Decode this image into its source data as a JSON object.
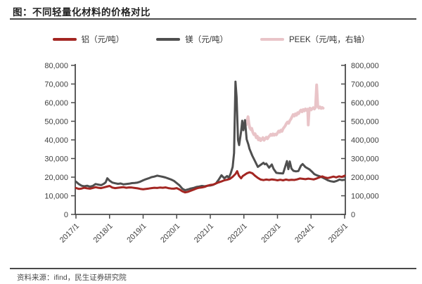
{
  "title": "图：不同轻量化材料的价格对比",
  "source": "资料来源：ifind，民生证券研究院",
  "colors": {
    "aluminum": "#a32622",
    "magnesium": "#4f4f4f",
    "peek": "#e9c4c8",
    "axis": "#4a4a4a",
    "tick_text": "#404040"
  },
  "legend": [
    {
      "label": "铝（元/吨）",
      "color": "#a32622"
    },
    {
      "label": "镁（元/吨）",
      "color": "#4f4f4f"
    },
    {
      "label": "PEEK（元/吨，右轴）",
      "color": "#e9c4c8"
    }
  ],
  "chart_data": {
    "type": "line",
    "title": "不同轻量化材料的价格对比",
    "x_unit": "months since 2017/1",
    "x_range": [
      0,
      96
    ],
    "x_tick_labels": [
      "2017/1",
      "2018/1",
      "2019/1",
      "2020/1",
      "2021/1",
      "2022/1",
      "2023/1",
      "2024/1",
      "2025/1"
    ],
    "left_axis": {
      "min": 0,
      "max": 80000,
      "step": 10000,
      "tick_labels": [
        "0",
        "10,000",
        "20,000",
        "30,000",
        "40,000",
        "50,000",
        "60,000",
        "70,000",
        "80,000"
      ]
    },
    "right_axis": {
      "min": 0,
      "max": 800000,
      "step": 100000,
      "tick_labels": [
        "0",
        "100,000",
        "200,000",
        "300,000",
        "400,000",
        "500,000",
        "600,000",
        "700,000",
        "800,000"
      ]
    },
    "grid": false,
    "legend_position": "top",
    "series": [
      {
        "name": "PEEK（元/吨，右轴）",
        "axis": "right",
        "color": "#e9c4c8",
        "width": 4,
        "points": [
          [
            60.5,
            491000
          ],
          [
            60.8,
            480000
          ],
          [
            61.2,
            508000
          ],
          [
            61.5,
            524000
          ],
          [
            61.8,
            488000
          ],
          [
            62.1,
            466000
          ],
          [
            62.5,
            455000
          ],
          [
            62.8,
            462000
          ],
          [
            63.2,
            440000
          ],
          [
            63.6,
            428000
          ],
          [
            64,
            433000
          ],
          [
            64.4,
            412000
          ],
          [
            64.8,
            420000
          ],
          [
            65.2,
            400000
          ],
          [
            65.6,
            410000
          ],
          [
            66,
            396000
          ],
          [
            66.4,
            404000
          ],
          [
            66.8,
            412000
          ],
          [
            67.2,
            398000
          ],
          [
            67.6,
            406000
          ],
          [
            68,
            414000
          ],
          [
            68.4,
            406000
          ],
          [
            68.8,
            416000
          ],
          [
            69.2,
            422000
          ],
          [
            69.6,
            430000
          ],
          [
            70,
            424000
          ],
          [
            70.4,
            432000
          ],
          [
            70.8,
            425000
          ],
          [
            71.2,
            431000
          ],
          [
            71.6,
            427000
          ],
          [
            72,
            437000
          ],
          [
            72.4,
            447000
          ],
          [
            72.8,
            442000
          ],
          [
            73.2,
            452000
          ],
          [
            73.6,
            446000
          ],
          [
            74,
            460000
          ],
          [
            74.4,
            468000
          ],
          [
            74.8,
            476000
          ],
          [
            75.2,
            488000
          ],
          [
            75.6,
            496000
          ],
          [
            76,
            489000
          ],
          [
            76.4,
            503000
          ],
          [
            76.8,
            512000
          ],
          [
            77.2,
            524000
          ],
          [
            77.6,
            536000
          ],
          [
            78,
            528000
          ],
          [
            78.4,
            540000
          ],
          [
            78.8,
            533000
          ],
          [
            79.2,
            546000
          ],
          [
            79.6,
            541000
          ],
          [
            80,
            553000
          ],
          [
            80.4,
            560000
          ],
          [
            80.8,
            551000
          ],
          [
            81.2,
            563000
          ],
          [
            81.6,
            556000
          ],
          [
            82,
            566000
          ],
          [
            82.4,
            558000
          ],
          [
            82.8,
            565000
          ],
          [
            83,
            480000
          ],
          [
            83.3,
            562000
          ],
          [
            83.6,
            570000
          ],
          [
            84,
            561000
          ],
          [
            84.4,
            567000
          ],
          [
            84.8,
            573000
          ],
          [
            85.2,
            566000
          ],
          [
            85.6,
            574000
          ],
          [
            86,
            695000
          ],
          [
            86.4,
            583000
          ],
          [
            86.8,
            571000
          ],
          [
            87.2,
            577000
          ],
          [
            87.6,
            569000
          ],
          [
            88,
            574000
          ],
          [
            88.3,
            570000
          ]
        ]
      },
      {
        "name": "镁（元/吨）",
        "axis": "left",
        "color": "#4f4f4f",
        "width": 3,
        "points": [
          [
            0,
            17600
          ],
          [
            1,
            16300
          ],
          [
            2,
            15400
          ],
          [
            3,
            15100
          ],
          [
            4,
            15400
          ],
          [
            5,
            14900
          ],
          [
            6,
            15300
          ],
          [
            7,
            16300
          ],
          [
            8,
            16000
          ],
          [
            9,
            15700
          ],
          [
            10,
            16500
          ],
          [
            10.6,
            17200
          ],
          [
            11.2,
            19400
          ],
          [
            12,
            18100
          ],
          [
            13,
            17100
          ],
          [
            14,
            16700
          ],
          [
            15,
            16400
          ],
          [
            16,
            16600
          ],
          [
            17,
            16100
          ],
          [
            18,
            16300
          ],
          [
            19,
            16500
          ],
          [
            20,
            16800
          ],
          [
            21,
            16900
          ],
          [
            22,
            17100
          ],
          [
            23,
            17600
          ],
          [
            24,
            18300
          ],
          [
            25,
            18900
          ],
          [
            26,
            19400
          ],
          [
            27,
            20000
          ],
          [
            28,
            20300
          ],
          [
            29,
            20800
          ],
          [
            30,
            20500
          ],
          [
            31,
            20200
          ],
          [
            32,
            19800
          ],
          [
            33,
            19300
          ],
          [
            34,
            18700
          ],
          [
            35,
            18000
          ],
          [
            36,
            16800
          ],
          [
            37,
            15600
          ],
          [
            38,
            13800
          ],
          [
            39,
            13000
          ],
          [
            40,
            13400
          ],
          [
            41,
            13900
          ],
          [
            42,
            14200
          ],
          [
            43,
            14700
          ],
          [
            44,
            15000
          ],
          [
            45,
            15300
          ],
          [
            46,
            15100
          ],
          [
            47,
            15400
          ],
          [
            48,
            15500
          ],
          [
            49,
            15900
          ],
          [
            50,
            16600
          ],
          [
            51,
            18600
          ],
          [
            52,
            21000
          ],
          [
            53,
            19400
          ],
          [
            54,
            20600
          ],
          [
            54.6,
            19600
          ],
          [
            55.3,
            22000
          ],
          [
            56,
            25500
          ],
          [
            56.5,
            33000
          ],
          [
            57,
            71300
          ],
          [
            57.4,
            63000
          ],
          [
            57.9,
            40000
          ],
          [
            58.3,
            37200
          ],
          [
            59,
            44500
          ],
          [
            59.4,
            50300
          ],
          [
            59.8,
            45200
          ],
          [
            60.4,
            50600
          ],
          [
            61,
            40300
          ],
          [
            61.6,
            37600
          ],
          [
            62,
            35200
          ],
          [
            63,
            31500
          ],
          [
            64,
            28500
          ],
          [
            65,
            25500
          ],
          [
            66,
            26600
          ],
          [
            67,
            27700
          ],
          [
            67.5,
            26900
          ],
          [
            68,
            27300
          ],
          [
            69,
            25100
          ],
          [
            70,
            26800
          ],
          [
            70.6,
            24500
          ],
          [
            71.6,
            22300
          ],
          [
            72.6,
            22100
          ],
          [
            74,
            22000
          ],
          [
            75.4,
            28600
          ],
          [
            75.9,
            24300
          ],
          [
            76.4,
            28400
          ],
          [
            77,
            24600
          ],
          [
            77.7,
            23400
          ],
          [
            78.6,
            23100
          ],
          [
            79.5,
            23300
          ],
          [
            80.4,
            26200
          ],
          [
            81,
            27000
          ],
          [
            82,
            25400
          ],
          [
            83.4,
            24200
          ],
          [
            84.3,
            23000
          ],
          [
            85.2,
            21600
          ],
          [
            86.2,
            20900
          ],
          [
            87.2,
            20400
          ],
          [
            88.2,
            19700
          ],
          [
            89.2,
            19000
          ],
          [
            90,
            18300
          ],
          [
            91,
            17800
          ],
          [
            92.2,
            17500
          ],
          [
            93.2,
            18000
          ],
          [
            94.2,
            18700
          ],
          [
            95,
            18400
          ],
          [
            96,
            18600
          ]
        ]
      },
      {
        "name": "铝（元/吨）",
        "axis": "left",
        "color": "#a32622",
        "width": 3,
        "points": [
          [
            0,
            14200
          ],
          [
            1,
            13700
          ],
          [
            2,
            13900
          ],
          [
            3,
            14300
          ],
          [
            4,
            14000
          ],
          [
            5,
            13800
          ],
          [
            6,
            14200
          ],
          [
            7,
            14600
          ],
          [
            8,
            14300
          ],
          [
            9,
            14100
          ],
          [
            10,
            14500
          ],
          [
            11,
            14900
          ],
          [
            12,
            15300
          ],
          [
            13,
            14400
          ],
          [
            14,
            14100
          ],
          [
            15,
            14300
          ],
          [
            16,
            14500
          ],
          [
            17,
            14600
          ],
          [
            18,
            14300
          ],
          [
            19,
            14500
          ],
          [
            20,
            14400
          ],
          [
            21,
            14200
          ],
          [
            22,
            14000
          ],
          [
            23,
            13700
          ],
          [
            24,
            13500
          ],
          [
            25,
            13700
          ],
          [
            26,
            13900
          ],
          [
            27,
            14100
          ],
          [
            28,
            14300
          ],
          [
            29,
            14200
          ],
          [
            30,
            14400
          ],
          [
            31,
            14300
          ],
          [
            32,
            14500
          ],
          [
            33,
            14100
          ],
          [
            34,
            13900
          ],
          [
            35,
            13800
          ],
          [
            36,
            14100
          ],
          [
            37,
            13400
          ],
          [
            38,
            12400
          ],
          [
            39,
            11800
          ],
          [
            40,
            12100
          ],
          [
            41,
            12700
          ],
          [
            42,
            13300
          ],
          [
            43,
            13900
          ],
          [
            44,
            14300
          ],
          [
            45,
            14500
          ],
          [
            46,
            14800
          ],
          [
            47,
            15400
          ],
          [
            48,
            15800
          ],
          [
            49,
            16000
          ],
          [
            50,
            16600
          ],
          [
            51,
            17200
          ],
          [
            52,
            17700
          ],
          [
            53,
            18300
          ],
          [
            54,
            18600
          ],
          [
            55,
            19100
          ],
          [
            56,
            20200
          ],
          [
            57,
            21700
          ],
          [
            57.6,
            23200
          ],
          [
            58.2,
            20800
          ],
          [
            59,
            19400
          ],
          [
            59.6,
            20600
          ],
          [
            60.3,
            21300
          ],
          [
            61,
            22000
          ],
          [
            62,
            22600
          ],
          [
            63,
            22100
          ],
          [
            64,
            20700
          ],
          [
            65,
            19600
          ],
          [
            66,
            18700
          ],
          [
            67,
            18400
          ],
          [
            68,
            18700
          ],
          [
            69,
            18500
          ],
          [
            70,
            18800
          ],
          [
            71,
            18600
          ],
          [
            72,
            18300
          ],
          [
            73,
            18600
          ],
          [
            74,
            18300
          ],
          [
            75,
            18700
          ],
          [
            76,
            18400
          ],
          [
            77,
            18600
          ],
          [
            78,
            18500
          ],
          [
            79,
            18800
          ],
          [
            80,
            19300
          ],
          [
            81,
            19100
          ],
          [
            82,
            18900
          ],
          [
            83,
            19200
          ],
          [
            84,
            19000
          ],
          [
            85,
            18800
          ],
          [
            86,
            19300
          ],
          [
            87,
            19900
          ],
          [
            88,
            20400
          ],
          [
            89,
            19800
          ],
          [
            90,
            19500
          ],
          [
            91,
            19900
          ],
          [
            92,
            20300
          ],
          [
            93,
            19900
          ],
          [
            94,
            20400
          ],
          [
            95,
            20100
          ],
          [
            96,
            20800
          ]
        ]
      }
    ]
  }
}
